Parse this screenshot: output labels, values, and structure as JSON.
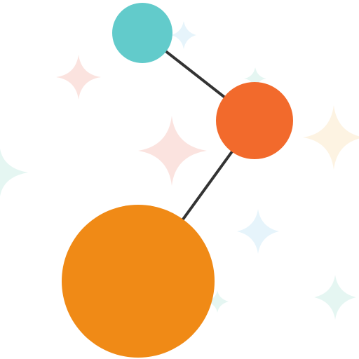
{
  "scene": {
    "background": "#ffffff",
    "link_color": "#333333",
    "nodes": [
      {
        "name": "teal-ball",
        "color": "#62cbcb"
      },
      {
        "name": "red-orange-ball",
        "color": "#f26a2c"
      },
      {
        "name": "orange-ball",
        "color": "#f08a16"
      }
    ],
    "sparkle_colors": {
      "pink": "#fbe3df",
      "cream": "#fdf3e2",
      "mint": "#e5f6f2",
      "blue": "#e6f4fb"
    }
  }
}
